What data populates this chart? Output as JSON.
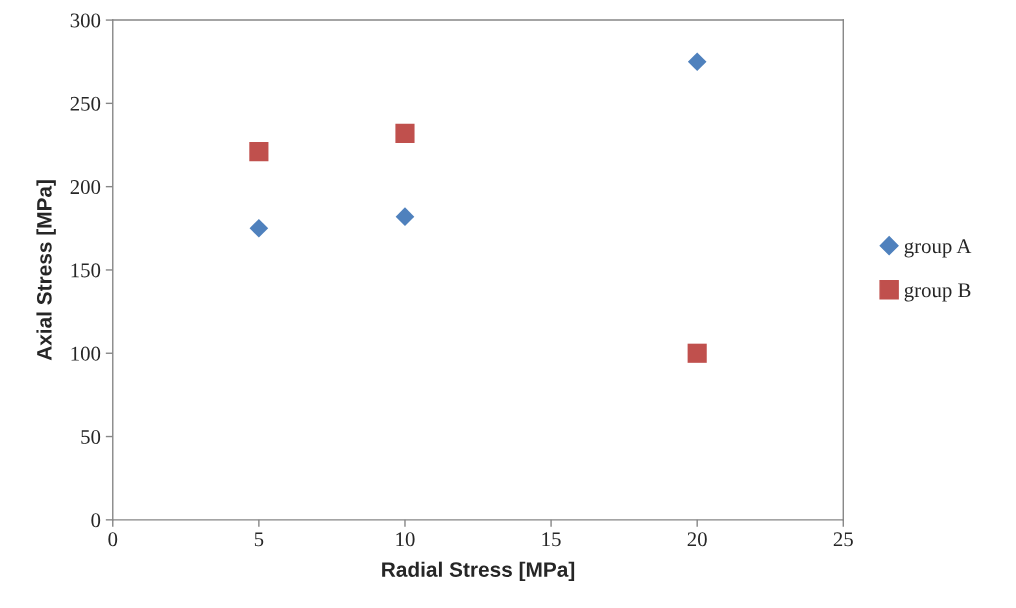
{
  "chart_data": {
    "type": "scatter",
    "xlabel": "Radial Stress [MPa]",
    "ylabel": "Axial Stress [MPa]",
    "x": [
      5,
      10,
      20
    ],
    "series": [
      {
        "name": "group A",
        "color": "#4f81bd",
        "marker": "diamond",
        "values": [
          175,
          182,
          275
        ]
      },
      {
        "name": "group B",
        "color": "#c0504d",
        "marker": "square",
        "values": [
          221,
          232,
          100
        ]
      }
    ],
    "xlim": [
      0,
      25
    ],
    "xticks": [
      0,
      5,
      10,
      15,
      20,
      25
    ],
    "ylim": [
      0,
      300
    ],
    "yticks": [
      0,
      50,
      100,
      150,
      200,
      250,
      300
    ],
    "grid": false,
    "legend": "right"
  }
}
